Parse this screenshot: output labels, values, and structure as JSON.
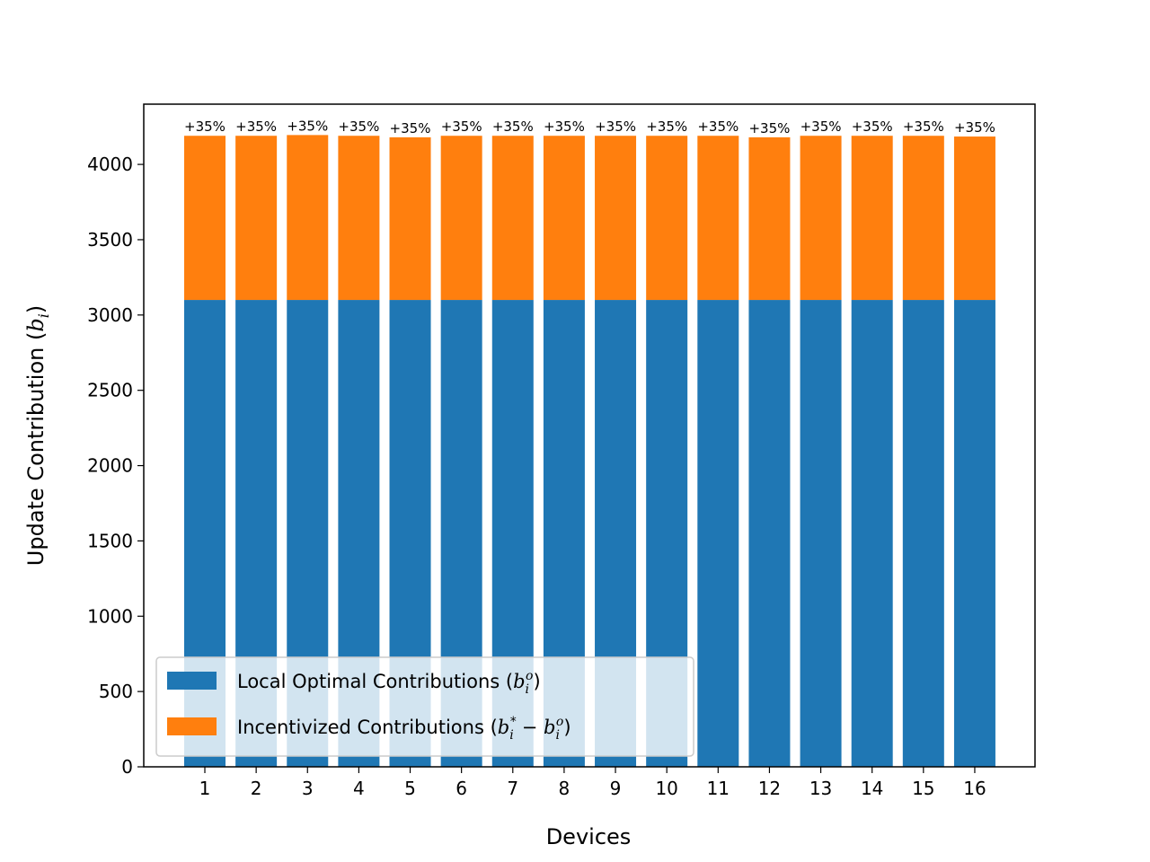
{
  "chart_data": {
    "type": "bar",
    "stacked": true,
    "categories": [
      "1",
      "2",
      "3",
      "4",
      "5",
      "6",
      "7",
      "8",
      "9",
      "10",
      "11",
      "12",
      "13",
      "14",
      "15",
      "16"
    ],
    "series": [
      {
        "name": "Local Optimal Contributions",
        "color": "#1f77b4",
        "values": [
          3100,
          3100,
          3100,
          3100,
          3100,
          3100,
          3100,
          3100,
          3100,
          3100,
          3100,
          3100,
          3100,
          3100,
          3100,
          3100
        ]
      },
      {
        "name": "Incentivized Contributions",
        "color": "#ff7f0e",
        "values": [
          1090,
          1090,
          1095,
          1090,
          1080,
          1090,
          1090,
          1090,
          1090,
          1090,
          1090,
          1080,
          1090,
          1090,
          1090,
          1085
        ]
      }
    ],
    "data_labels": [
      "+35%",
      "+35%",
      "+35%",
      "+35%",
      "+35%",
      "+35%",
      "+35%",
      "+35%",
      "+35%",
      "+35%",
      "+35%",
      "+35%",
      "+35%",
      "+35%",
      "+35%",
      "+35%"
    ],
    "xlabel": "Devices",
    "ylabel": "Update Contribution",
    "ylim": [
      0,
      4400
    ],
    "yticks": [
      0,
      500,
      1000,
      1500,
      2000,
      2500,
      3000,
      3500,
      4000
    ],
    "legend_position": "lower-left",
    "grid": false
  }
}
